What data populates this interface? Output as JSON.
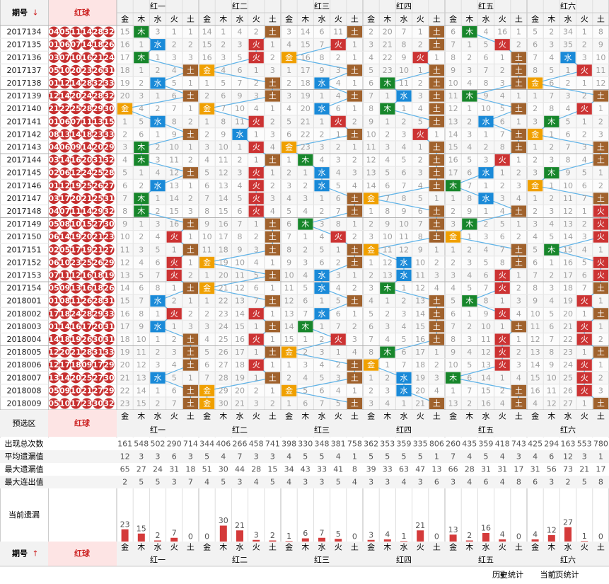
{
  "header": {
    "issue_label": "期号",
    "arrow_down": "↓",
    "arrow_up": "↑",
    "balls_label": "红球",
    "preselect_label": "预选区",
    "groups": [
      "红一",
      "红二",
      "红三",
      "红四",
      "红五",
      "红六"
    ],
    "elements": [
      "金",
      "木",
      "水",
      "火",
      "土"
    ],
    "element_colors": [
      "#f0a000",
      "#17862b",
      "#1a8ad8",
      "#cc3333",
      "#a0622d"
    ]
  },
  "rows": [
    {
      "issue": "2017134",
      "balls": [
        "04",
        "05",
        "11",
        "14",
        "28",
        "32"
      ],
      "cells": [
        15,
        "木",
        3,
        1,
        1,
        14,
        1,
        4,
        2,
        "土",
        3,
        14,
        6,
        11,
        "土",
        2,
        20,
        7,
        1,
        "土",
        6,
        "木",
        4,
        16,
        1,
        5,
        2,
        34,
        1,
        8
      ]
    },
    {
      "issue": "2017135",
      "balls": [
        "01",
        "06",
        "07",
        "14",
        "18",
        "26"
      ],
      "cells": [
        16,
        1,
        "水",
        2,
        2,
        15,
        2,
        3,
        "火",
        1,
        4,
        15,
        7,
        "火",
        1,
        3,
        21,
        8,
        2,
        "土",
        7,
        1,
        5,
        "火",
        2,
        6,
        3,
        35,
        2,
        9
      ]
    },
    {
      "issue": "2017136",
      "balls": [
        "03",
        "07",
        "10",
        "16",
        "21",
        "24"
      ],
      "cells": [
        17,
        "木",
        1,
        3,
        3,
        16,
        3,
        5,
        "火",
        2,
        "金",
        16,
        8,
        2,
        1,
        4,
        22,
        9,
        "火",
        1,
        8,
        2,
        6,
        1,
        "土",
        7,
        4,
        "水",
        3,
        10
      ]
    },
    {
      "issue": "2017137",
      "balls": [
        "05",
        "10",
        "20",
        "23",
        "26",
        "31"
      ],
      "cells": [
        18,
        1,
        2,
        4,
        "土",
        "金",
        4,
        6,
        1,
        3,
        1,
        17,
        9,
        3,
        "土",
        5,
        23,
        10,
        1,
        "土",
        9,
        3,
        7,
        2,
        "土",
        8,
        5,
        1,
        "火",
        11
      ]
    },
    {
      "issue": "2017138",
      "balls": [
        "01",
        "12",
        "14",
        "28",
        "32",
        "33"
      ],
      "cells": [
        19,
        2,
        "水",
        5,
        1,
        1,
        5,
        7,
        2,
        "土",
        2,
        18,
        "水",
        4,
        1,
        6,
        "木",
        11,
        2,
        "土",
        10,
        4,
        8,
        3,
        "土",
        "金",
        6,
        2,
        1,
        12
      ]
    },
    {
      "issue": "2017139",
      "balls": [
        "12",
        "14",
        "20",
        "24",
        "28",
        "32"
      ],
      "cells": [
        20,
        3,
        1,
        6,
        "土",
        2,
        6,
        9,
        3,
        "土",
        3,
        19,
        1,
        4,
        "土",
        7,
        1,
        "水",
        3,
        "土",
        11,
        "木",
        9,
        4,
        1,
        1,
        7,
        3,
        2,
        "土"
      ]
    },
    {
      "issue": "2017140",
      "balls": [
        "21",
        "22",
        "25",
        "28",
        "29",
        "30"
      ],
      "cells": [
        "金",
        4,
        2,
        7,
        1,
        "金",
        7,
        10,
        4,
        1,
        4,
        20,
        "水",
        6,
        1,
        8,
        "木",
        1,
        4,
        "土",
        12,
        1,
        10,
        5,
        "土",
        2,
        8,
        4,
        "火",
        1
      ]
    },
    {
      "issue": "2017141",
      "balls": [
        "01",
        "06",
        "07",
        "11",
        "13",
        "15"
      ],
      "cells": [
        1,
        5,
        "水",
        8,
        2,
        1,
        8,
        11,
        "火",
        2,
        5,
        21,
        1,
        "火",
        2,
        9,
        1,
        2,
        5,
        "土",
        13,
        2,
        "水",
        6,
        1,
        3,
        "木",
        5,
        1,
        2
      ]
    },
    {
      "issue": "2017142",
      "balls": [
        "08",
        "13",
        "14",
        "18",
        "23",
        "33"
      ],
      "cells": [
        2,
        6,
        1,
        9,
        "土",
        2,
        9,
        "水",
        1,
        3,
        6,
        22,
        2,
        1,
        "土",
        10,
        2,
        3,
        "火",
        1,
        14,
        3,
        1,
        7,
        "土",
        "金",
        1,
        6,
        2,
        3
      ]
    },
    {
      "issue": "2017143",
      "balls": [
        "04",
        "06",
        "09",
        "14",
        "20",
        "29"
      ],
      "cells": [
        3,
        "木",
        2,
        10,
        1,
        3,
        10,
        1,
        "火",
        4,
        "金",
        23,
        3,
        2,
        1,
        11,
        3,
        4,
        1,
        "土",
        15,
        4,
        2,
        8,
        "土",
        1,
        2,
        7,
        3,
        "土"
      ]
    },
    {
      "issue": "2017144",
      "balls": [
        "03",
        "14",
        "16",
        "20",
        "31",
        "32"
      ],
      "cells": [
        4,
        "木",
        3,
        11,
        2,
        4,
        11,
        2,
        1,
        "土",
        1,
        "木",
        4,
        3,
        2,
        12,
        4,
        5,
        2,
        "土",
        16,
        5,
        3,
        "火",
        1,
        2,
        3,
        8,
        4,
        "土"
      ]
    },
    {
      "issue": "2017145",
      "balls": [
        "02",
        "06",
        "12",
        "24",
        "25",
        "28"
      ],
      "cells": [
        5,
        1,
        4,
        12,
        "土",
        5,
        12,
        3,
        "火",
        1,
        2,
        1,
        "水",
        4,
        3,
        13,
        5,
        6,
        3,
        "土",
        17,
        6,
        "水",
        1,
        2,
        3,
        "木",
        9,
        5,
        1
      ]
    },
    {
      "issue": "2017146",
      "balls": [
        "01",
        "12",
        "19",
        "25",
        "26",
        "27"
      ],
      "cells": [
        6,
        2,
        "水",
        13,
        1,
        6,
        13,
        4,
        "火",
        2,
        3,
        2,
        "水",
        5,
        4,
        14,
        6,
        7,
        4,
        "土",
        "木",
        7,
        1,
        2,
        3,
        "金",
        1,
        10,
        6,
        2
      ]
    },
    {
      "issue": "2017147",
      "balls": [
        "03",
        "17",
        "20",
        "21",
        "25",
        "31"
      ],
      "cells": [
        7,
        "木",
        1,
        14,
        2,
        7,
        14,
        5,
        "火",
        3,
        4,
        3,
        1,
        6,
        "土",
        "金",
        7,
        8,
        5,
        1,
        1,
        8,
        "水",
        3,
        4,
        1,
        2,
        11,
        7,
        "土"
      ]
    },
    {
      "issue": "2017148",
      "balls": [
        "04",
        "07",
        "11",
        "14",
        "29",
        "32"
      ],
      "cells": [
        8,
        "木",
        2,
        15,
        3,
        8,
        15,
        6,
        "火",
        4,
        5,
        4,
        2,
        7,
        "土",
        1,
        8,
        9,
        6,
        "土",
        2,
        9,
        1,
        4,
        "土",
        2,
        3,
        12,
        1,
        "火"
      ]
    },
    {
      "issue": "2017149",
      "balls": [
        "05",
        "08",
        "10",
        "15",
        "27",
        "30"
      ],
      "cells": [
        9,
        1,
        3,
        16,
        "土",
        9,
        16,
        7,
        1,
        "土",
        6,
        "木",
        3,
        8,
        1,
        2,
        9,
        10,
        7,
        "土",
        3,
        "木",
        2,
        5,
        1,
        3,
        4,
        13,
        2,
        "火"
      ]
    },
    {
      "issue": "2017150",
      "balls": [
        "06",
        "14",
        "19",
        "20",
        "21",
        "23"
      ],
      "cells": [
        10,
        2,
        4,
        "火",
        1,
        10,
        17,
        8,
        2,
        "土",
        7,
        1,
        4,
        "火",
        2,
        3,
        10,
        11,
        8,
        "土",
        "金",
        1,
        3,
        6,
        2,
        4,
        5,
        14,
        3,
        "火"
      ]
    },
    {
      "issue": "2017151",
      "balls": [
        "02",
        "05",
        "17",
        "19",
        "21",
        "27"
      ],
      "cells": [
        11,
        3,
        5,
        1,
        "土",
        11,
        18,
        9,
        3,
        "土",
        8,
        2,
        5,
        1,
        "土",
        "金",
        11,
        12,
        9,
        1,
        1,
        2,
        4,
        7,
        "土",
        5,
        "木",
        15,
        4,
        1
      ]
    },
    {
      "issue": "2017152",
      "balls": [
        "06",
        "10",
        "23",
        "25",
        "26",
        "29"
      ],
      "cells": [
        12,
        4,
        6,
        "火",
        1,
        "金",
        19,
        10,
        4,
        1,
        9,
        3,
        6,
        2,
        "土",
        1,
        12,
        "水",
        10,
        2,
        2,
        3,
        5,
        8,
        "土",
        6,
        1,
        16,
        5,
        "火"
      ]
    },
    {
      "issue": "2017153",
      "balls": [
        "07",
        "11",
        "12",
        "16",
        "18",
        "19"
      ],
      "cells": [
        13,
        5,
        7,
        "火",
        2,
        1,
        20,
        11,
        5,
        "土",
        10,
        4,
        "水",
        3,
        1,
        2,
        13,
        "水",
        11,
        3,
        3,
        4,
        6,
        "火",
        1,
        7,
        2,
        17,
        6,
        "火"
      ]
    },
    {
      "issue": "2017154",
      "balls": [
        "05",
        "09",
        "13",
        "16",
        "18",
        "26"
      ],
      "cells": [
        14,
        6,
        8,
        1,
        "土",
        "金",
        21,
        12,
        6,
        1,
        11,
        5,
        "水",
        4,
        2,
        3,
        "木",
        1,
        12,
        4,
        4,
        5,
        7,
        "火",
        2,
        8,
        3,
        18,
        7,
        "土"
      ]
    },
    {
      "issue": "2018001",
      "balls": [
        "01",
        "08",
        "11",
        "26",
        "28",
        "31"
      ],
      "cells": [
        15,
        7,
        "水",
        2,
        1,
        1,
        22,
        13,
        7,
        "土",
        12,
        6,
        1,
        5,
        "土",
        4,
        1,
        2,
        13,
        "土",
        5,
        "木",
        8,
        1,
        3,
        9,
        4,
        19,
        "火",
        1
      ]
    },
    {
      "issue": "2018002",
      "balls": [
        "17",
        "18",
        "24",
        "28",
        "29",
        "33"
      ],
      "cells": [
        16,
        8,
        1,
        "火",
        2,
        2,
        23,
        14,
        "火",
        1,
        13,
        7,
        "水",
        6,
        1,
        5,
        2,
        3,
        14,
        "土",
        6,
        1,
        9,
        "火",
        4,
        10,
        5,
        20,
        1,
        "土"
      ]
    },
    {
      "issue": "2018003",
      "balls": [
        "01",
        "14",
        "16",
        "17",
        "20",
        "31"
      ],
      "cells": [
        17,
        9,
        "水",
        1,
        3,
        3,
        24,
        15,
        1,
        "土",
        14,
        "木",
        1,
        7,
        2,
        6,
        3,
        4,
        15,
        "土",
        7,
        2,
        10,
        1,
        "土",
        11,
        6,
        21,
        "火",
        1
      ]
    },
    {
      "issue": "2018004",
      "balls": [
        "14",
        "18",
        "19",
        "26",
        "30",
        "31"
      ],
      "cells": [
        18,
        10,
        1,
        2,
        "土",
        4,
        25,
        16,
        "火",
        1,
        15,
        1,
        2,
        "火",
        3,
        7,
        4,
        5,
        16,
        "土",
        8,
        3,
        11,
        "火",
        1,
        12,
        7,
        22,
        "火",
        2
      ]
    },
    {
      "issue": "2018005",
      "balls": [
        "12",
        "20",
        "21",
        "28",
        "31",
        "33"
      ],
      "cells": [
        19,
        11,
        2,
        3,
        "土",
        5,
        26,
        17,
        1,
        "土",
        "金",
        2,
        3,
        1,
        4,
        8,
        "木",
        6,
        17,
        1,
        9,
        4,
        12,
        "火",
        2,
        13,
        8,
        23,
        1,
        "土"
      ]
    },
    {
      "issue": "2018006",
      "balls": [
        "12",
        "17",
        "18",
        "09",
        "17",
        "29"
      ],
      "cells": [
        20,
        12,
        3,
        4,
        "土",
        6,
        27,
        18,
        "火",
        1,
        1,
        3,
        4,
        2,
        "土",
        "金",
        1,
        7,
        18,
        2,
        10,
        5,
        13,
        "火",
        3,
        14,
        9,
        24,
        "火",
        1
      ]
    },
    {
      "issue": "2018007",
      "balls": [
        "13",
        "14",
        "20",
        "25",
        "27",
        "30"
      ],
      "cells": [
        21,
        13,
        "水",
        5,
        1,
        7,
        28,
        19,
        1,
        "土",
        2,
        4,
        5,
        3,
        "土",
        1,
        2,
        "水",
        19,
        3,
        "木",
        6,
        14,
        1,
        4,
        15,
        10,
        25,
        "火",
        2
      ]
    },
    {
      "issue": "2018008",
      "balls": [
        "05",
        "09",
        "10",
        "21",
        "27",
        "29"
      ],
      "cells": [
        22,
        14,
        1,
        6,
        "土",
        "金",
        29,
        20,
        2,
        1,
        "金",
        5,
        6,
        4,
        1,
        2,
        3,
        "水",
        20,
        4,
        1,
        7,
        15,
        2,
        "土",
        16,
        11,
        26,
        "火",
        3
      ]
    },
    {
      "issue": "2018009",
      "balls": [
        "05",
        "10",
        "17",
        "23",
        "30",
        "32"
      ],
      "cells": [
        23,
        15,
        2,
        7,
        "土",
        "金",
        30,
        21,
        3,
        2,
        1,
        6,
        7,
        5,
        "土",
        3,
        4,
        1,
        21,
        "土",
        13,
        2,
        16,
        4,
        "土",
        4,
        12,
        27,
        1,
        "土"
      ]
    }
  ],
  "stats": [
    {
      "label": "出现总次数",
      "values": [
        161,
        548,
        502,
        290,
        714,
        344,
        406,
        266,
        458,
        741,
        398,
        330,
        348,
        381,
        758,
        362,
        353,
        359,
        335,
        806,
        260,
        435,
        359,
        418,
        743,
        425,
        294,
        163,
        553,
        780
      ]
    },
    {
      "label": "平均遗漏值",
      "values": [
        12,
        3,
        3,
        6,
        3,
        5,
        4,
        7,
        3,
        3,
        4,
        5,
        5,
        4,
        1,
        5,
        5,
        5,
        5,
        1,
        7,
        4,
        5,
        4,
        3,
        4,
        6,
        12,
        3,
        1
      ]
    },
    {
      "label": "最大遗漏值",
      "values": [
        65,
        27,
        24,
        31,
        18,
        51,
        30,
        44,
        28,
        15,
        34,
        43,
        33,
        41,
        8,
        39,
        33,
        63,
        47,
        13,
        66,
        28,
        31,
        31,
        17,
        31,
        56,
        73,
        21,
        17
      ]
    },
    {
      "label": "最大连出值",
      "values": [
        2,
        5,
        5,
        3,
        7,
        4,
        5,
        3,
        4,
        5,
        4,
        3,
        3,
        5,
        4,
        3,
        3,
        4,
        3,
        6,
        3,
        4,
        6,
        4,
        8,
        6,
        3,
        2,
        5,
        8
      ]
    }
  ],
  "current": {
    "label": "当前遗漏",
    "values": [
      23,
      15,
      2,
      7,
      0,
      0,
      30,
      21,
      3,
      2,
      1,
      6,
      7,
      5,
      0,
      3,
      4,
      1,
      21,
      0,
      13,
      2,
      16,
      4,
      0,
      4,
      12,
      27,
      1,
      0
    ]
  },
  "footer": {
    "options": [
      "历史统计",
      "当前页统计"
    ]
  }
}
